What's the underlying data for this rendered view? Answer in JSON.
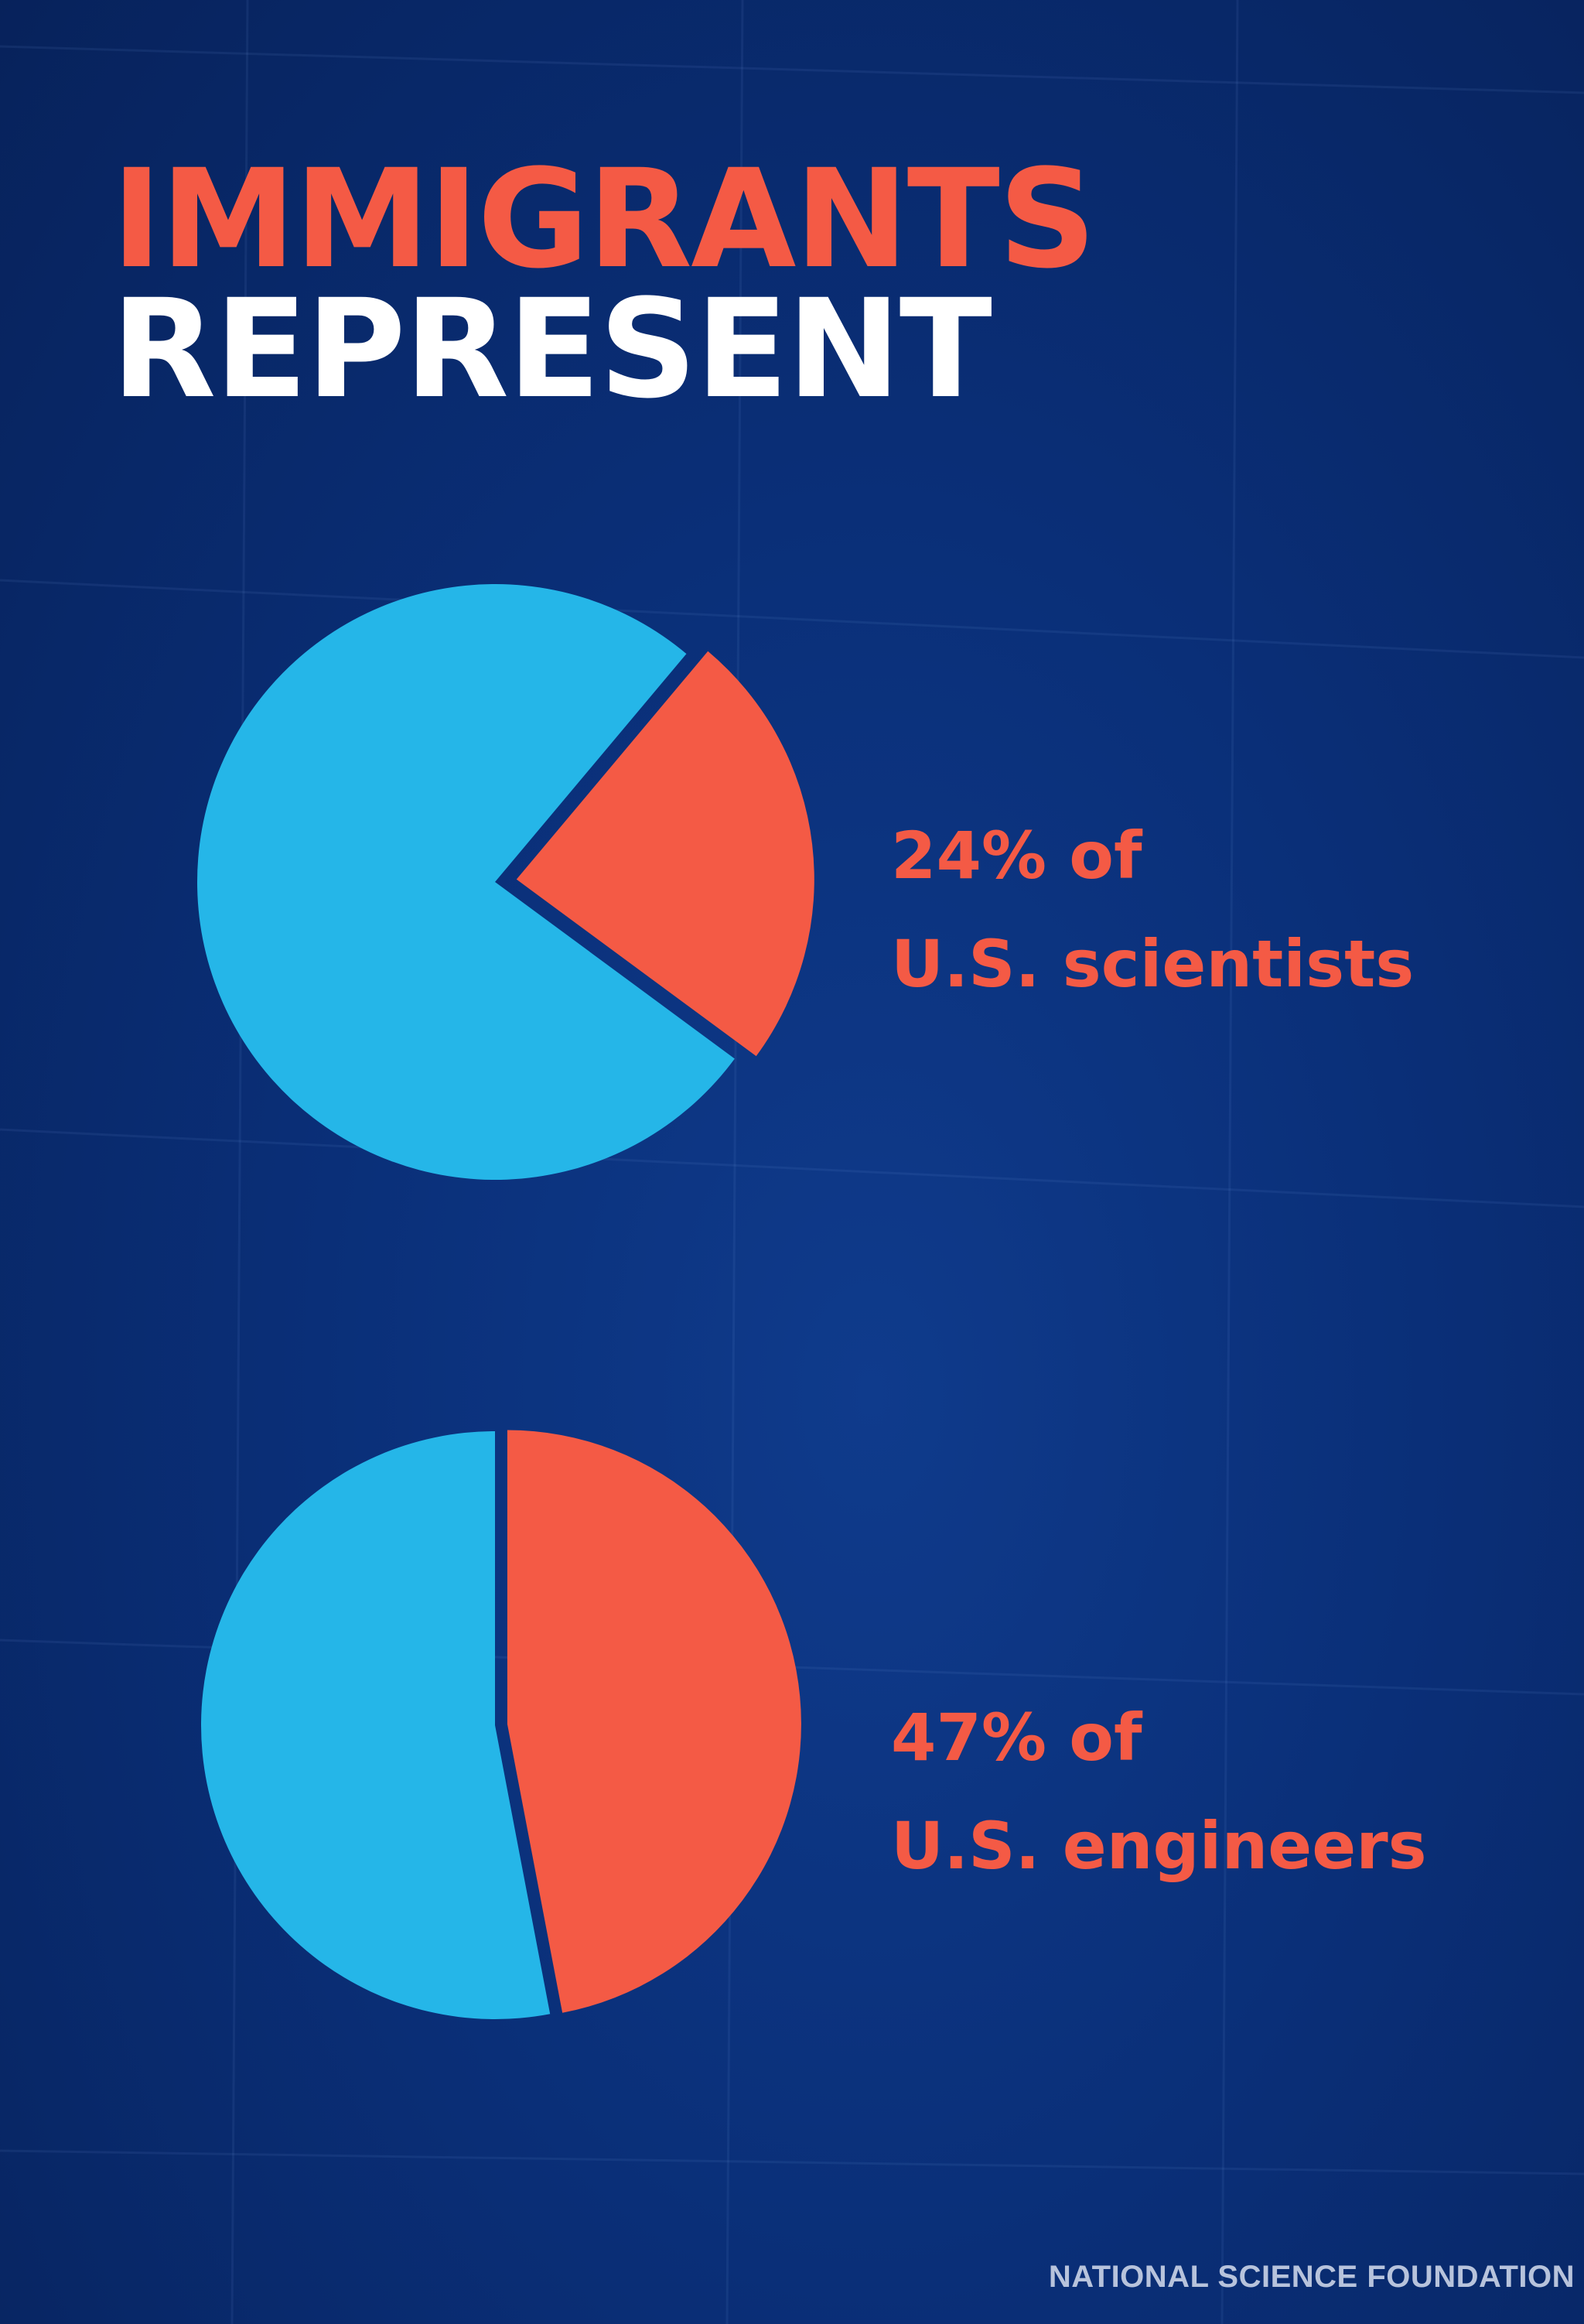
{
  "title": {
    "line1": "IMMIGRANTS",
    "line2": "REPRESENT"
  },
  "chart_data": [
    {
      "type": "pie",
      "slices": [
        {
          "label": "24% of U.S. scientists",
          "value": 24,
          "color": "#f45a45"
        },
        {
          "value": 76,
          "color": "#25b6e8"
        }
      ],
      "annotation_lines": [
        "24% of",
        "U.S. scientists"
      ]
    },
    {
      "type": "pie",
      "slices": [
        {
          "label": "47% of U.S. engineers",
          "value": 47,
          "color": "#f45a45"
        },
        {
          "value": 53,
          "color": "#25b6e8"
        }
      ],
      "annotation_lines": [
        "47% of",
        "U.S. engineers"
      ]
    }
  ],
  "source": "NATIONAL SCIENCE FOUNDATION",
  "colors": {
    "background": "#0a2f78",
    "accent": "#f45a45",
    "highlight": "#25b6e8",
    "title_secondary": "#ffffff",
    "source_text": "#b7c3dc"
  }
}
